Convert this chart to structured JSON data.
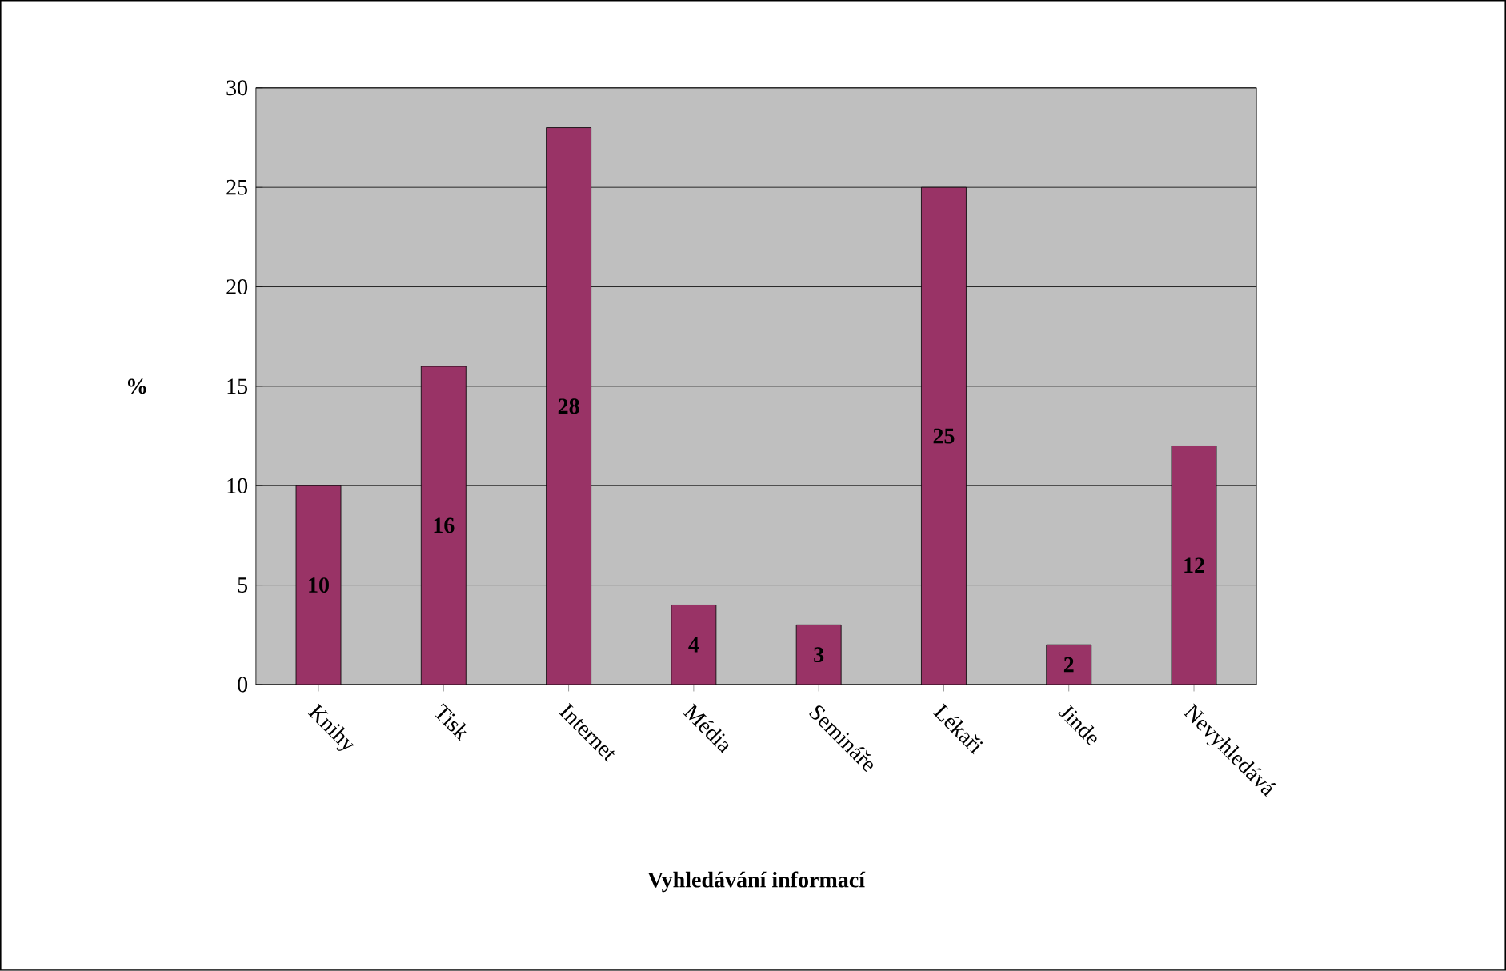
{
  "chart_data": {
    "type": "bar",
    "xlabel": "Vyhledávání informací",
    "ylabel": "%",
    "categories": [
      "Knihy",
      "Tisk",
      "Internet",
      "Média",
      "Semináře",
      "Lékaři",
      "Jinde",
      "Nevyhledává"
    ],
    "values": [
      10,
      16,
      28,
      4,
      3,
      25,
      2,
      12
    ],
    "color": "#993366",
    "ylim": [
      0,
      30
    ],
    "yticks": [
      0,
      5,
      10,
      15,
      20,
      25,
      30
    ],
    "grid": "y",
    "data_labels": true
  }
}
